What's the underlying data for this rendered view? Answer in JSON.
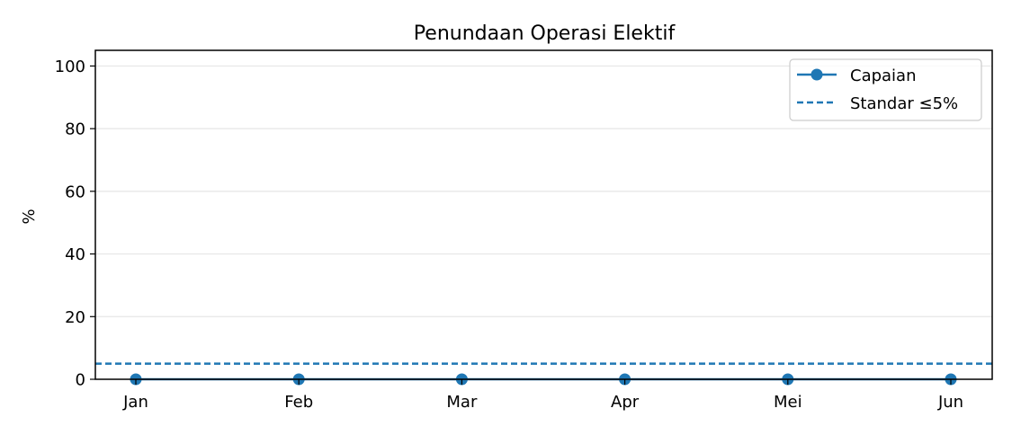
{
  "chart_data": {
    "type": "line",
    "title": "Penundaan Operasi Elektif",
    "xlabel": "",
    "ylabel": "%",
    "categories": [
      "Jan",
      "Feb",
      "Mar",
      "Apr",
      "Mei",
      "Jun"
    ],
    "series": [
      {
        "name": "Capaian",
        "values": [
          0,
          0,
          0,
          0,
          0,
          0
        ],
        "color": "#1f77b4",
        "style": "solid",
        "marker": "circle"
      }
    ],
    "reference_lines": [
      {
        "name": "Standar ≤5%",
        "y": 5,
        "color": "#1f77b4",
        "style": "dashed"
      }
    ],
    "ylim": [
      0,
      105
    ],
    "yticks": [
      0,
      20,
      40,
      60,
      80,
      100
    ],
    "grid": "horizontal",
    "legend_position": "top-right"
  }
}
